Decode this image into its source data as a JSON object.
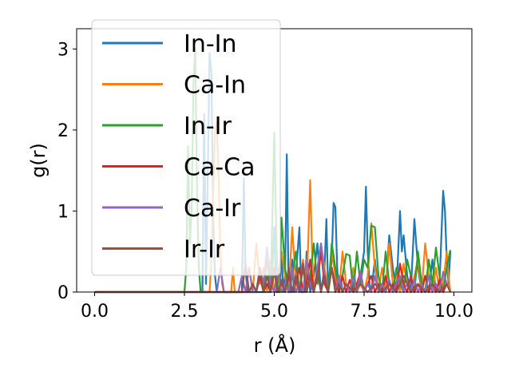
{
  "chart_data": {
    "type": "line",
    "xlabel": "r (Å)",
    "ylabel": "g(r)",
    "xlim": [
      -0.5,
      10.5
    ],
    "ylim": [
      0,
      3.25
    ],
    "xticks": [
      0.0,
      2.5,
      5.0,
      7.5,
      10.0
    ],
    "xtick_labels": [
      "0.0",
      "2.5",
      "5.0",
      "7.5",
      "10.0"
    ],
    "yticks": [
      0,
      1,
      2,
      3
    ],
    "ytick_labels": [
      "0",
      "1",
      "2",
      "3"
    ],
    "grid": false,
    "legend_position": "top-left",
    "series": [
      {
        "name": "In-In",
        "color": "#1f77b4",
        "x": [
          0.0,
          3.0,
          3.05,
          3.1,
          3.15,
          3.2,
          3.25,
          3.3,
          3.35,
          3.4,
          3.45,
          4.1,
          4.15,
          4.2,
          4.25,
          4.3,
          4.9,
          4.95,
          5.0,
          5.05,
          5.1,
          5.15,
          5.2,
          5.25,
          5.3,
          5.35,
          5.4,
          5.45,
          5.5,
          5.55,
          5.6,
          5.7,
          5.75,
          5.8,
          5.85,
          5.9,
          6.0,
          6.1,
          6.2,
          6.3,
          6.4,
          6.45,
          6.5,
          6.6,
          6.65,
          6.7,
          6.75,
          6.8,
          6.85,
          6.9,
          7.0,
          7.1,
          7.2,
          7.3,
          7.4,
          7.5,
          7.55,
          7.6,
          7.65,
          7.7,
          7.8,
          7.9,
          8.0,
          8.1,
          8.2,
          8.3,
          8.4,
          8.5,
          8.55,
          8.6,
          8.7,
          8.8,
          8.9,
          9.0,
          9.1,
          9.2,
          9.3,
          9.4,
          9.5,
          9.6,
          9.7,
          9.75,
          9.8,
          9.85,
          9.9
        ],
        "y": [
          0.0,
          0.0,
          2.2,
          0.1,
          1.5,
          2.95,
          2.7,
          0.9,
          0.2,
          0.0,
          0.0,
          0.0,
          1.4,
          0.3,
          0.0,
          0.0,
          0.0,
          0.3,
          0.8,
          0.0,
          0.0,
          0.0,
          0.5,
          0.0,
          0.2,
          1.7,
          0.0,
          0.0,
          0.4,
          0.0,
          0.2,
          0.8,
          0.0,
          0.0,
          0.0,
          0.5,
          0.0,
          0.2,
          0.6,
          0.0,
          0.3,
          0.9,
          0.0,
          0.4,
          1.1,
          1.05,
          0.3,
          0.0,
          0.2,
          0.0,
          0.1,
          0.0,
          0.1,
          0.0,
          0.2,
          0.5,
          1.3,
          0.5,
          0.1,
          0.0,
          0.4,
          0.0,
          0.1,
          0.0,
          0.7,
          0.3,
          0.0,
          1.0,
          0.5,
          0.7,
          0.2,
          0.0,
          0.9,
          0.3,
          0.0,
          0.2,
          0.0,
          0.4,
          0.0,
          0.1,
          1.25,
          1.0,
          0.4,
          0.1,
          0.5
        ]
      },
      {
        "name": "Ca-In",
        "color": "#ff7f0e",
        "x": [
          0.0,
          3.2,
          3.25,
          3.3,
          3.35,
          3.4,
          3.45,
          3.5,
          3.55,
          3.6,
          3.65,
          3.8,
          3.85,
          3.9,
          4.0,
          4.4,
          4.5,
          4.6,
          4.7,
          4.8,
          4.9,
          5.0,
          5.1,
          5.2,
          5.3,
          5.4,
          5.5,
          5.6,
          5.7,
          5.8,
          5.9,
          6.0,
          6.05,
          6.1,
          6.2,
          6.3,
          6.4,
          6.5,
          6.6,
          6.7,
          6.8,
          6.9,
          7.0,
          7.1,
          7.2,
          7.3,
          7.4,
          7.5,
          7.6,
          7.7,
          7.8,
          7.9,
          8.0,
          8.1,
          8.2,
          8.3,
          8.4,
          8.5,
          8.6,
          8.7,
          8.8,
          8.9,
          9.0,
          9.1,
          9.2,
          9.3,
          9.4,
          9.5,
          9.6,
          9.7,
          9.8,
          9.85,
          9.9
        ],
        "y": [
          0.0,
          0.0,
          0.4,
          1.2,
          2.0,
          2.1,
          1.4,
          0.5,
          0.1,
          0.0,
          0.0,
          0.0,
          0.3,
          0.0,
          0.0,
          0.0,
          0.6,
          0.1,
          0.3,
          0.0,
          0.4,
          0.0,
          0.1,
          0.5,
          0.2,
          0.0,
          0.8,
          0.1,
          0.0,
          0.4,
          0.0,
          1.38,
          0.5,
          0.0,
          0.2,
          0.6,
          0.3,
          0.0,
          0.5,
          0.2,
          0.0,
          0.5,
          0.1,
          0.0,
          0.3,
          0.0,
          0.1,
          0.0,
          0.2,
          0.85,
          0.3,
          0.0,
          0.3,
          0.0,
          0.6,
          0.1,
          0.2,
          0.0,
          0.35,
          0.1,
          0.0,
          0.2,
          0.4,
          0.0,
          0.6,
          0.2,
          0.0,
          0.3,
          0.0,
          0.1,
          0.5,
          0.2,
          0.0
        ]
      },
      {
        "name": "In-Ir",
        "color": "#2ca02c",
        "x": [
          0.0,
          2.5,
          2.55,
          2.6,
          2.65,
          2.7,
          2.75,
          2.8,
          2.85,
          2.9,
          2.95,
          3.0,
          3.1,
          4.5,
          4.6,
          4.7,
          4.8,
          4.9,
          5.0,
          5.05,
          5.1,
          5.15,
          5.2,
          5.3,
          5.4,
          5.5,
          5.6,
          5.7,
          5.8,
          5.9,
          6.0,
          6.1,
          6.2,
          6.3,
          6.4,
          6.5,
          6.6,
          6.7,
          6.8,
          6.9,
          7.0,
          7.1,
          7.2,
          7.3,
          7.4,
          7.5,
          7.6,
          7.7,
          7.8,
          7.9,
          8.0,
          8.1,
          8.2,
          8.3,
          8.4,
          8.5,
          8.6,
          8.7,
          8.8,
          8.9,
          9.0,
          9.1,
          9.2,
          9.3,
          9.4,
          9.5,
          9.6,
          9.7,
          9.8,
          9.9
        ],
        "y": [
          0.0,
          0.0,
          0.3,
          1.8,
          0.6,
          1.0,
          2.6,
          3.0,
          1.2,
          0.3,
          0.0,
          0.0,
          0.0,
          0.0,
          0.2,
          0.0,
          0.4,
          0.0,
          1.97,
          0.8,
          0.0,
          0.0,
          0.92,
          0.3,
          0.0,
          0.2,
          0.5,
          0.0,
          0.3,
          0.0,
          0.2,
          0.6,
          0.1,
          0.5,
          0.2,
          0.0,
          0.6,
          0.3,
          0.0,
          0.2,
          0.47,
          0.45,
          0.0,
          0.5,
          0.1,
          0.4,
          0.3,
          0.82,
          0.8,
          0.2,
          0.0,
          0.5,
          0.1,
          0.0,
          0.3,
          0.1,
          0.0,
          0.4,
          0.2,
          0.0,
          0.5,
          0.1,
          0.0,
          0.4,
          0.1,
          0.55,
          0.2,
          0.0,
          0.3,
          0.52
        ]
      },
      {
        "name": "Ca-Ca",
        "color": "#d62728",
        "x": [
          0.0,
          4.3,
          4.4,
          4.5,
          4.6,
          4.7,
          4.8,
          4.9,
          5.0,
          5.1,
          5.2,
          5.3,
          5.4,
          5.5,
          5.6,
          5.7,
          5.8,
          5.9,
          6.0,
          6.1,
          6.2,
          6.3,
          6.4,
          6.5,
          6.6,
          6.7,
          6.8,
          6.9,
          7.0,
          7.1,
          7.2,
          7.3,
          7.4,
          7.5,
          7.6,
          7.7,
          7.8,
          7.9,
          8.0,
          8.1,
          8.2,
          8.3,
          8.4,
          8.5,
          8.6,
          8.7,
          8.8,
          8.9,
          9.0,
          9.1,
          9.2,
          9.3,
          9.4,
          9.5,
          9.6,
          9.7,
          9.8,
          9.9
        ],
        "y": [
          0.0,
          0.0,
          0.1,
          0.0,
          0.2,
          0.0,
          0.1,
          0.0,
          0.25,
          0.0,
          0.1,
          0.0,
          0.2,
          0.0,
          0.1,
          0.3,
          0.0,
          0.1,
          0.4,
          0.0,
          0.2,
          0.5,
          0.1,
          0.0,
          0.3,
          0.1,
          0.0,
          0.2,
          0.0,
          0.15,
          0.0,
          0.1,
          0.25,
          0.0,
          0.1,
          0.2,
          0.0,
          0.1,
          0.0,
          0.2,
          0.0,
          0.1,
          0.0,
          0.35,
          0.1,
          0.0,
          0.2,
          0.0,
          0.1,
          0.0,
          0.2,
          0.0,
          0.1,
          0.0,
          0.15,
          0.0,
          0.1,
          0.0
        ]
      },
      {
        "name": "Ca-Ir",
        "color": "#9467bd",
        "x": [
          0.0,
          3.4,
          3.5,
          3.6,
          3.7,
          4.0,
          4.1,
          4.2,
          4.3,
          4.4,
          4.5,
          4.6,
          4.7,
          4.8,
          4.9,
          5.0,
          5.1,
          5.2,
          5.3,
          5.4,
          5.5,
          5.6,
          5.7,
          5.8,
          5.9,
          6.0,
          6.1,
          6.2,
          6.3,
          6.4,
          6.5,
          6.6,
          6.7,
          6.8,
          6.9,
          7.0,
          7.1,
          7.2,
          7.3,
          7.4,
          7.5,
          7.6,
          7.7,
          7.8,
          7.9,
          8.0,
          8.1,
          8.2,
          8.3,
          8.4,
          8.5,
          8.6,
          8.7,
          8.8,
          8.9,
          9.0,
          9.1,
          9.2,
          9.3,
          9.4,
          9.5,
          9.6,
          9.7,
          9.8,
          9.9
        ],
        "y": [
          0.0,
          0.0,
          0.3,
          0.0,
          0.0,
          0.0,
          0.2,
          0.0,
          0.3,
          0.0,
          0.0,
          0.3,
          0.1,
          0.55,
          0.1,
          0.0,
          0.3,
          0.0,
          0.1,
          0.0,
          0.3,
          0.0,
          0.1,
          0.0,
          0.4,
          0.1,
          0.0,
          0.3,
          0.6,
          0.2,
          0.0,
          0.3,
          0.0,
          0.2,
          0.0,
          0.1,
          0.0,
          0.2,
          0.0,
          0.25,
          0.0,
          0.1,
          0.0,
          0.2,
          0.0,
          0.1,
          0.0,
          0.15,
          0.0,
          0.1,
          0.2,
          0.0,
          0.1,
          0.0,
          0.15,
          0.0,
          0.1,
          0.0,
          0.2,
          0.0,
          0.1,
          0.0,
          0.25,
          0.1,
          0.0
        ]
      },
      {
        "name": "Ir-Ir",
        "color": "#8c564b",
        "x": [
          0.0,
          4.1,
          4.2,
          4.3,
          4.4,
          4.5,
          4.6,
          4.7,
          4.8,
          4.9,
          5.0,
          5.1,
          5.2,
          5.3,
          5.4,
          5.5,
          5.6,
          5.7,
          5.8,
          5.9,
          6.0,
          6.1,
          6.2,
          6.3,
          6.4,
          6.5,
          6.6,
          6.7,
          6.8,
          6.9,
          7.0,
          7.2,
          7.4,
          7.6,
          7.8,
          8.0,
          8.2,
          8.4,
          8.6,
          8.8,
          9.0,
          9.2,
          9.4,
          9.6,
          9.8,
          9.9
        ],
        "y": [
          0.0,
          0.0,
          0.35,
          0.0,
          0.1,
          0.0,
          0.3,
          0.0,
          0.2,
          0.0,
          0.3,
          0.0,
          0.15,
          0.0,
          0.3,
          0.0,
          0.2,
          0.0,
          0.35,
          0.0,
          0.2,
          0.0,
          0.25,
          0.0,
          0.2,
          0.0,
          0.3,
          0.0,
          0.1,
          0.0,
          0.1,
          0.0,
          0.1,
          0.0,
          0.1,
          0.0,
          0.1,
          0.0,
          0.2,
          0.0,
          0.1,
          0.0,
          0.1,
          0.0,
          0.1,
          0.0
        ]
      }
    ]
  }
}
